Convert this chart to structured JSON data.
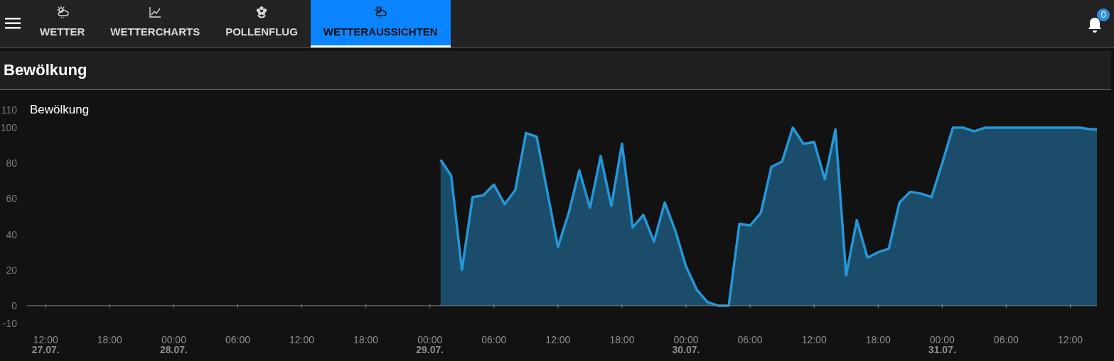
{
  "chart_data": {
    "type": "area",
    "title": "Bewölkung",
    "annotations": [
      "WETTER",
      "WETTERCHARTS",
      "POLLENFLUG",
      "WETTERAUSSICHTEN",
      "0"
    ],
    "x": [
      "--07-29T01:00",
      "--07-29T02:00",
      "--07-29T03:00",
      "--07-29T04:00",
      "--07-29T05:00",
      "--07-29T06:00",
      "--07-29T07:00",
      "--07-29T08:00",
      "--07-29T09:00",
      "--07-29T10:00",
      "--07-29T11:00",
      "--07-29T12:00",
      "--07-29T13:00",
      "--07-29T14:00",
      "--07-29T15:00",
      "--07-29T16:00",
      "--07-29T17:00",
      "--07-29T18:00",
      "--07-29T19:00",
      "--07-29T20:00",
      "--07-29T21:00",
      "--07-29T22:00",
      "--07-29T23:00",
      "--07-30T00:00",
      "--07-30T01:00",
      "--07-30T02:00",
      "--07-30T03:00",
      "--07-30T04:00",
      "--07-30T05:00",
      "--07-30T06:00",
      "--07-30T07:00",
      "--07-30T08:00",
      "--07-30T09:00",
      "--07-30T10:00",
      "--07-30T11:00",
      "--07-30T12:00",
      "--07-30T13:00",
      "--07-30T14:00",
      "--07-30T15:00",
      "--07-30T16:00",
      "--07-30T17:00",
      "--07-30T18:00",
      "--07-30T19:00",
      "--07-30T20:00",
      "--07-30T21:00",
      "--07-30T22:00",
      "--07-30T23:00",
      "--07-31T00:00",
      "--07-31T01:00",
      "--07-31T02:00",
      "--07-31T03:00",
      "--07-31T04:00",
      "--07-31T05:00",
      "--07-31T06:00",
      "--07-31T07:00",
      "--07-31T08:00",
      "--07-31T09:00",
      "--07-31T10:00",
      "--07-31T11:00",
      "--07-31T12:00",
      "--07-31T13:00",
      "--07-31T14:00",
      "--07-31T14:30"
    ],
    "series": [
      {
        "name": "Bewölkung",
        "color": "#2596d6",
        "values": [
          82,
          73,
          20,
          61,
          62,
          68,
          57,
          65,
          97,
          95,
          64,
          33,
          52,
          76,
          55,
          84,
          56,
          91,
          44,
          51,
          36,
          58,
          42,
          22,
          9,
          2,
          0,
          0,
          46,
          45,
          52,
          78,
          81,
          100,
          91,
          92,
          71,
          99,
          17,
          48,
          27,
          30,
          32,
          58,
          64,
          63,
          61,
          80,
          100,
          100,
          98,
          100,
          100,
          100,
          100,
          100,
          100,
          100,
          100,
          100,
          100,
          99,
          99
        ]
      }
    ],
    "xlim": [
      "--07-27T10:15",
      "--07-31T14:30"
    ],
    "xticks": [
      {
        "value": "--07-27T12:00",
        "label": "12:00\n27.07."
      },
      {
        "value": "--07-27T18:00",
        "label": "18:00"
      },
      {
        "value": "--07-28T00:00",
        "label": "00:00\n28.07."
      },
      {
        "value": "--07-28T06:00",
        "label": "06:00"
      },
      {
        "value": "--07-28T12:00",
        "label": "12:00"
      },
      {
        "value": "--07-28T18:00",
        "label": "18:00"
      },
      {
        "value": "--07-29T00:00",
        "label": "00:00\n29.07."
      },
      {
        "value": "--07-29T06:00",
        "label": "06:00"
      },
      {
        "value": "--07-29T12:00",
        "label": "12:00"
      },
      {
        "value": "--07-29T18:00",
        "label": "18:00"
      },
      {
        "value": "--07-30T00:00",
        "label": "00:00\n30.07."
      },
      {
        "value": "--07-30T06:00",
        "label": "06:00"
      },
      {
        "value": "--07-30T12:00",
        "label": "12:00"
      },
      {
        "value": "--07-30T18:00",
        "label": "18:00"
      },
      {
        "value": "--07-31T00:00",
        "label": "00:00\n31.07."
      },
      {
        "value": "--07-31T06:00",
        "label": "06:00"
      },
      {
        "value": "--07-31T12:00",
        "label": "12:00"
      }
    ],
    "ylim": [
      -10,
      110
    ],
    "yticks": [
      -10,
      0,
      20,
      40,
      60,
      80,
      100,
      110
    ],
    "ref_lines": [
      {
        "axis": "y",
        "value": 0,
        "color": "#8a8a8a"
      }
    ],
    "grid": false,
    "legend": "top left"
  }
}
